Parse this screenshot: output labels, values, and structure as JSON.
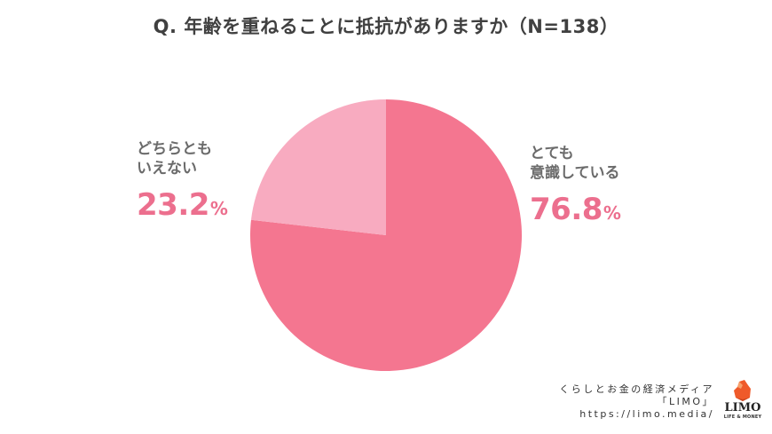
{
  "title": "Q. 年齢を重ねることに抵抗がありますか（N=138）",
  "colors": {
    "slice_main": "#f47690",
    "slice_secondary": "#f8abc0",
    "pct_text": "#ec6f8e",
    "label_text": "#6b6b6b",
    "title_text": "#404040"
  },
  "labels": {
    "left": {
      "text": "どちらとも\nいえない",
      "value": "23.2",
      "unit": "%"
    },
    "right": {
      "text": "とても\n意識している",
      "value": "76.8",
      "unit": "%"
    }
  },
  "footer": {
    "line1": "くらしとお金の経済メディア",
    "line2": "「LIMO」",
    "line3": "https://limo.media/",
    "logo_text": "LIMO",
    "logo_sub": "LIFE & MONEY"
  },
  "chart_data": {
    "type": "pie",
    "title": "Q. 年齢を重ねることに抵抗がありますか（N=138）",
    "categories": [
      "とても意識している",
      "どちらともいえない"
    ],
    "values": [
      76.8,
      23.2
    ],
    "unit": "%",
    "n": 138,
    "colors": [
      "#f47690",
      "#f8abc0"
    ],
    "start_angle": "12 o'clock",
    "direction": "clockwise",
    "legend": "direct labels (left and right of pie)"
  }
}
